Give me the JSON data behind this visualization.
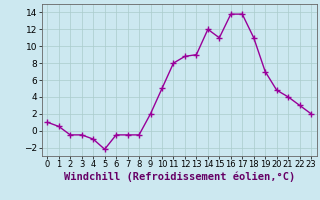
{
  "x": [
    0,
    1,
    2,
    3,
    4,
    5,
    6,
    7,
    8,
    9,
    10,
    11,
    12,
    13,
    14,
    15,
    16,
    17,
    18,
    19,
    20,
    21,
    22,
    23
  ],
  "y": [
    1,
    0.5,
    -0.5,
    -0.5,
    -1,
    -2.2,
    -0.5,
    -0.5,
    -0.5,
    2,
    5,
    8,
    8.8,
    9,
    12,
    11,
    13.8,
    13.8,
    11,
    7,
    4.8,
    4,
    3,
    2
  ],
  "line_color": "#990099",
  "marker_color": "#990099",
  "bg_color": "#cce8f0",
  "grid_color": "#aacccc",
  "xlabel": "Windchill (Refroidissement éolien,°C)",
  "ylim": [
    -3,
    15
  ],
  "xlim": [
    -0.5,
    23.5
  ],
  "yticks": [
    -2,
    0,
    2,
    4,
    6,
    8,
    10,
    12,
    14
  ],
  "xtick_labels": [
    "0",
    "1",
    "2",
    "3",
    "4",
    "5",
    "6",
    "7",
    "8",
    "9",
    "10",
    "11",
    "12",
    "13",
    "14",
    "15",
    "16",
    "17",
    "18",
    "19",
    "20",
    "21",
    "22",
    "23"
  ],
  "xlabel_fontsize": 7.5,
  "tick_fontsize": 6.5,
  "line_width": 1.0,
  "marker_size": 4
}
